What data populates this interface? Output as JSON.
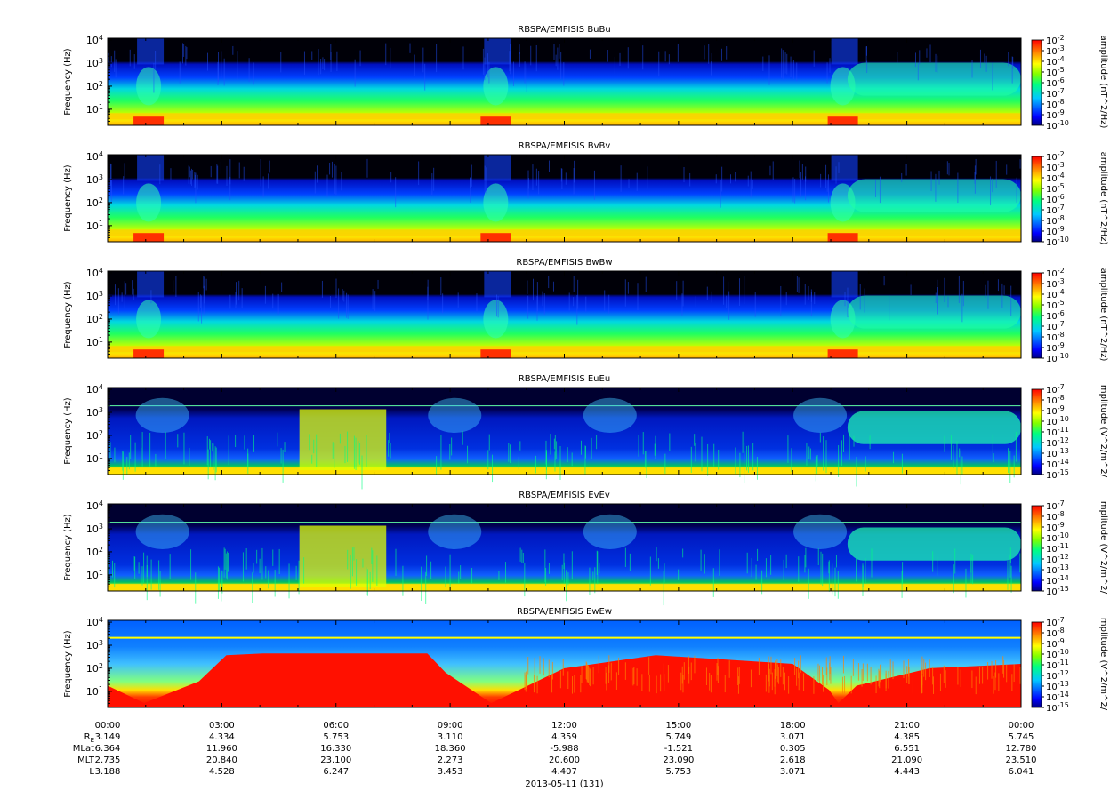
{
  "chart_data": {
    "type": "heatmap",
    "date_label": "2013-05-11 (131)",
    "x_ticks": [
      "00:00",
      "03:00",
      "06:00",
      "09:00",
      "12:00",
      "15:00",
      "18:00",
      "21:00",
      "00:00"
    ],
    "ylabel": "Frequency (Hz)",
    "yscale": "log",
    "ylim": [
      2,
      12000
    ],
    "y_ticks": [
      {
        "base": "10",
        "exp": "1",
        "value": 10
      },
      {
        "base": "10",
        "exp": "2",
        "value": 100
      },
      {
        "base": "10",
        "exp": "3",
        "value": 1000
      },
      {
        "base": "10",
        "exp": "4",
        "value": 10000
      }
    ],
    "colormap": [
      "#000080",
      "#0000ff",
      "#00ffff",
      "#00ff00",
      "#ffff00",
      "#ff8000",
      "#ff0000"
    ],
    "panels": [
      {
        "title": "RBSPA/EMFISIS  BuBu",
        "colorbar_label": "amplitude (nT^2/Hz)",
        "colorbar_ticks": [
          {
            "base": "10",
            "exp": "-2"
          },
          {
            "base": "10",
            "exp": "-3"
          },
          {
            "base": "10",
            "exp": "-4"
          },
          {
            "base": "10",
            "exp": "-5"
          },
          {
            "base": "10",
            "exp": "-6"
          },
          {
            "base": "10",
            "exp": "-7"
          },
          {
            "base": "10",
            "exp": "-8"
          },
          {
            "base": "10",
            "exp": "-9"
          },
          {
            "base": "10",
            "exp": "-10"
          }
        ],
        "kind": "magnetic"
      },
      {
        "title": "RBSPA/EMFISIS  BvBv",
        "colorbar_label": "amplitude (nT^2/Hz)",
        "colorbar_ticks": [
          {
            "base": "10",
            "exp": "-2"
          },
          {
            "base": "10",
            "exp": "-3"
          },
          {
            "base": "10",
            "exp": "-4"
          },
          {
            "base": "10",
            "exp": "-5"
          },
          {
            "base": "10",
            "exp": "-6"
          },
          {
            "base": "10",
            "exp": "-7"
          },
          {
            "base": "10",
            "exp": "-8"
          },
          {
            "base": "10",
            "exp": "-9"
          },
          {
            "base": "10",
            "exp": "-10"
          }
        ],
        "kind": "magnetic"
      },
      {
        "title": "RBSPA/EMFISIS  BwBw",
        "colorbar_label": "amplitude (nT^2/Hz)",
        "colorbar_ticks": [
          {
            "base": "10",
            "exp": "-2"
          },
          {
            "base": "10",
            "exp": "-3"
          },
          {
            "base": "10",
            "exp": "-4"
          },
          {
            "base": "10",
            "exp": "-5"
          },
          {
            "base": "10",
            "exp": "-6"
          },
          {
            "base": "10",
            "exp": "-7"
          },
          {
            "base": "10",
            "exp": "-8"
          },
          {
            "base": "10",
            "exp": "-9"
          },
          {
            "base": "10",
            "exp": "-10"
          }
        ],
        "kind": "magnetic"
      },
      {
        "title": "RBSPA/EMFISIS  EuEu",
        "colorbar_label": "mplitude (V^2/m^2/",
        "colorbar_ticks": [
          {
            "base": "10",
            "exp": "-7"
          },
          {
            "base": "10",
            "exp": "-8"
          },
          {
            "base": "10",
            "exp": "-9"
          },
          {
            "base": "10",
            "exp": "-10"
          },
          {
            "base": "10",
            "exp": "-11"
          },
          {
            "base": "10",
            "exp": "-12"
          },
          {
            "base": "10",
            "exp": "-13"
          },
          {
            "base": "10",
            "exp": "-14"
          },
          {
            "base": "10",
            "exp": "-15"
          }
        ],
        "kind": "electric"
      },
      {
        "title": "RBSPA/EMFISIS  EvEv",
        "colorbar_label": "mplitude (V^2/m^2/",
        "colorbar_ticks": [
          {
            "base": "10",
            "exp": "-7"
          },
          {
            "base": "10",
            "exp": "-8"
          },
          {
            "base": "10",
            "exp": "-9"
          },
          {
            "base": "10",
            "exp": "-10"
          },
          {
            "base": "10",
            "exp": "-11"
          },
          {
            "base": "10",
            "exp": "-12"
          },
          {
            "base": "10",
            "exp": "-13"
          },
          {
            "base": "10",
            "exp": "-14"
          },
          {
            "base": "10",
            "exp": "-15"
          }
        ],
        "kind": "electric"
      },
      {
        "title": "RBSPA/EMFISIS  EwEw",
        "colorbar_label": "mplitude (V^2/m^2/",
        "colorbar_ticks": [
          {
            "base": "10",
            "exp": "-7"
          },
          {
            "base": "10",
            "exp": "-8"
          },
          {
            "base": "10",
            "exp": "-9"
          },
          {
            "base": "10",
            "exp": "-10"
          },
          {
            "base": "10",
            "exp": "-11"
          },
          {
            "base": "10",
            "exp": "-12"
          },
          {
            "base": "10",
            "exp": "-13"
          },
          {
            "base": "10",
            "exp": "-14"
          },
          {
            "base": "10",
            "exp": "-15"
          }
        ],
        "kind": "electric_w"
      }
    ],
    "ephemeris": [
      {
        "label": "R",
        "sub": "E",
        "values": [
          "3.149",
          "4.334",
          "5.753",
          "3.110",
          "4.359",
          "5.749",
          "3.071",
          "4.385",
          "5.745"
        ]
      },
      {
        "label": "MLat",
        "sub": "",
        "values": [
          "6.364",
          "11.960",
          "16.330",
          "18.360",
          "-5.988",
          "-1.521",
          "0.305",
          "6.551",
          "12.780"
        ]
      },
      {
        "label": "MLT",
        "sub": "",
        "values": [
          "2.735",
          "20.840",
          "23.100",
          "2.273",
          "20.600",
          "23.090",
          "2.618",
          "21.090",
          "23.510"
        ]
      },
      {
        "label": "L",
        "sub": "",
        "values": [
          "3.188",
          "4.528",
          "6.247",
          "3.453",
          "4.407",
          "5.753",
          "3.071",
          "4.443",
          "6.041"
        ]
      }
    ]
  }
}
